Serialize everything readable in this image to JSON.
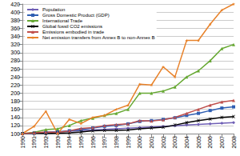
{
  "chart_data": {
    "type": "line",
    "categories": [
      "1990",
      "1991",
      "1992",
      "1993",
      "1994",
      "1995",
      "1996",
      "1997",
      "1998",
      "1999",
      "2000",
      "2001",
      "2002",
      "2003",
      "2004",
      "2005",
      "2006",
      "2007",
      "2008"
    ],
    "series": [
      {
        "name": "Population",
        "color": "#6f5fb5",
        "marker": "diamond",
        "values": [
          100,
          101.5,
          103,
          104.5,
          106,
          107.5,
          109,
          110.5,
          112,
          113.5,
          115,
          116.5,
          118,
          119.5,
          121,
          122.5,
          124,
          125.5,
          127
        ]
      },
      {
        "name": "Gross Domestic Product (GDP)",
        "color": "#2f5fb3",
        "marker": "square",
        "values": [
          100,
          101,
          103,
          104,
          107,
          110,
          114,
          118,
          120,
          124,
          130,
          132,
          135,
          139,
          145,
          150,
          157,
          163,
          166
        ]
      },
      {
        "name": "International Trade",
        "color": "#66a832",
        "marker": "triangle",
        "values": [
          100,
          103,
          110,
          112,
          120,
          132,
          138,
          145,
          150,
          160,
          200,
          200,
          205,
          215,
          240,
          255,
          280,
          310,
          320
        ]
      },
      {
        "name": "Global fossil CO2 emissions",
        "color": "#000000",
        "marker": "x",
        "values": [
          100,
          101,
          100,
          101,
          102,
          104,
          107,
          108,
          108,
          109,
          112,
          114,
          116,
          121,
          127,
          132,
          136,
          140,
          142
        ]
      },
      {
        "name": "Emissions embodied in trade",
        "color": "#c0504d",
        "marker": "triangle",
        "values": [
          100,
          102,
          104,
          103,
          107,
          113,
          115,
          120,
          122,
          124,
          132,
          131,
          134,
          140,
          150,
          160,
          170,
          178,
          182
        ]
      },
      {
        "name": "Net emission transfers from Annex B to non-Annex B",
        "color": "#e8822a",
        "marker": "star",
        "values": [
          100,
          118,
          155,
          100,
          135,
          125,
          140,
          145,
          160,
          170,
          222,
          220,
          265,
          240,
          330,
          330,
          370,
          405,
          420
        ]
      }
    ],
    "ylim": [
      100,
      420
    ],
    "yticks": [
      100,
      120,
      140,
      160,
      180,
      200,
      220,
      240,
      260,
      280,
      300,
      320,
      340,
      360,
      380,
      400,
      420
    ],
    "grid": true,
    "legend": "upper left"
  }
}
